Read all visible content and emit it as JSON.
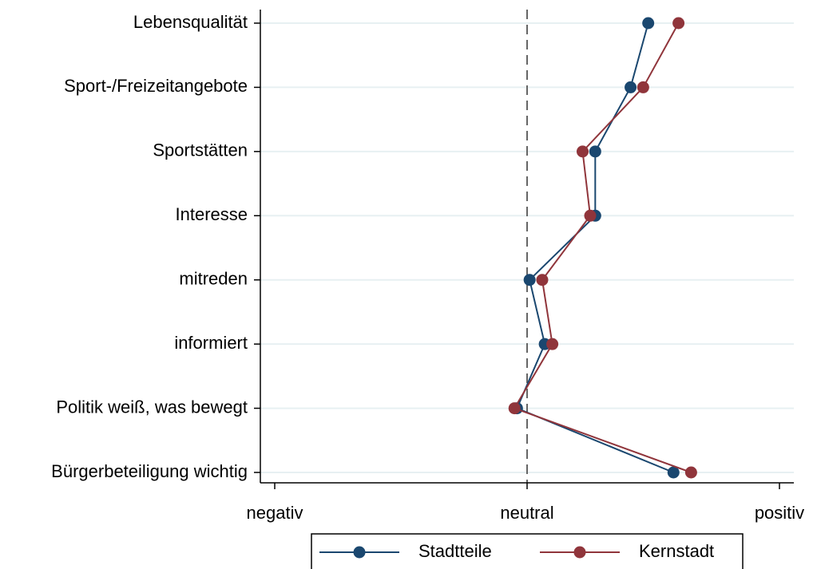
{
  "chart_data": {
    "type": "line",
    "orientation": "horizontal-dot",
    "categories": [
      "Lebensqualität",
      "Sport-/Freizeitangebote",
      "Sportstätten",
      "Interesse",
      "mitreden",
      "informiert",
      "Politik weiß, was bewegt",
      "Bürgerbeteiligung wichtig"
    ],
    "x_ticks": [
      {
        "value": -1,
        "label": "negativ"
      },
      {
        "value": 0,
        "label": "neutral"
      },
      {
        "value": 1,
        "label": "positiv"
      }
    ],
    "xlim": [
      -1.05,
      1.05
    ],
    "reference_line": {
      "value": 0,
      "style": "dashed"
    },
    "grid": true,
    "legend": "bottom",
    "series": [
      {
        "name": "Stadtteile",
        "color": "#1a476f",
        "values": [
          0.48,
          0.41,
          0.27,
          0.27,
          0.01,
          0.07,
          -0.04,
          0.58
        ]
      },
      {
        "name": "Kernstadt",
        "color": "#90353b",
        "values": [
          0.6,
          0.46,
          0.22,
          0.25,
          0.06,
          0.1,
          -0.05,
          0.65
        ]
      }
    ]
  }
}
